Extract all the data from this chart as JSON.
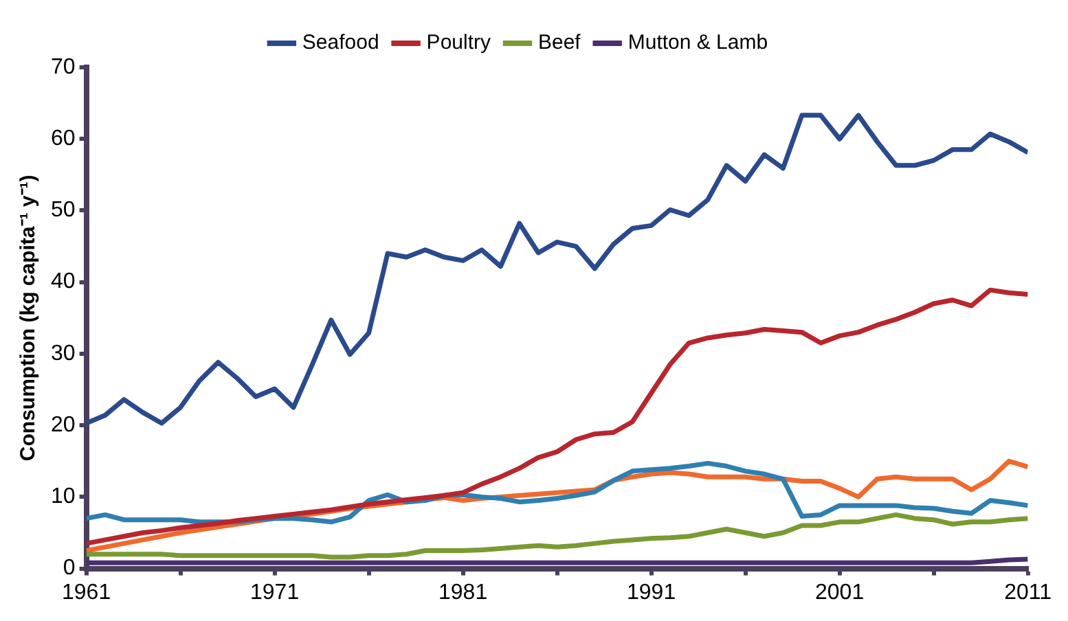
{
  "chart_data": {
    "type": "line",
    "ylabel": "Consumption (kg capita⁻¹ y⁻¹)",
    "x": [
      1961,
      1962,
      1963,
      1964,
      1965,
      1966,
      1967,
      1968,
      1969,
      1970,
      1971,
      1972,
      1973,
      1974,
      1975,
      1976,
      1977,
      1978,
      1979,
      1980,
      1981,
      1982,
      1983,
      1984,
      1985,
      1986,
      1987,
      1988,
      1989,
      1990,
      1991,
      1992,
      1993,
      1994,
      1995,
      1996,
      1997,
      1998,
      1999,
      2000,
      2001,
      2002,
      2003,
      2004,
      2005,
      2006,
      2007,
      2008,
      2009,
      2010,
      2011
    ],
    "xlim": [
      1961,
      2011
    ],
    "xticks": [
      1961,
      {
        "value": 1966,
        "label": null
      },
      1971,
      {
        "value": 1976,
        "label": null
      },
      1981,
      {
        "value": 1986,
        "label": null
      },
      1991,
      {
        "value": 1996,
        "label": null
      },
      2001,
      {
        "value": 2006,
        "label": null
      },
      2011
    ],
    "ylim": [
      0,
      70
    ],
    "yticks": [
      0,
      10,
      20,
      30,
      40,
      50,
      60,
      70
    ],
    "legend": "top",
    "marker": "none",
    "line_style": "solid",
    "series": [
      {
        "name": "Seafood",
        "color": "#2a4a8c",
        "values": [
          20.3,
          21.4,
          23.6,
          21.8,
          20.3,
          22.5,
          26.2,
          28.8,
          26.6,
          24,
          25.1,
          22.5,
          28.5,
          34.7,
          29.9,
          32.9,
          44,
          43.5,
          44.5,
          43.5,
          43,
          44.5,
          42.2,
          48.2,
          44.1,
          45.6,
          45,
          41.9,
          45.3,
          47.5,
          47.9,
          50.1,
          49.3,
          51.5,
          56.3,
          54.1,
          57.8,
          55.9,
          63.3,
          63.3,
          60,
          63.3,
          59.6,
          56.3,
          56.3,
          57,
          58.5,
          58.5,
          60.7,
          59.6,
          58.1
        ]
      },
      {
        "name": "Poultry",
        "color": "#b8262e",
        "values": [
          3.5,
          4,
          4.5,
          5,
          5.3,
          5.7,
          6,
          6.3,
          6.7,
          7,
          7.3,
          7.6,
          7.9,
          8.2,
          8.6,
          9,
          9.3,
          9.6,
          9.9,
          10.2,
          10.6,
          11.8,
          12.8,
          14,
          15.5,
          16.3,
          18,
          18.8,
          19,
          20.5,
          24.5,
          28.5,
          31.5,
          32.2,
          32.6,
          32.9,
          33.4,
          33.2,
          33,
          31.5,
          32.5,
          33,
          34,
          34.8,
          35.8,
          37,
          37.5,
          36.7,
          38.9,
          38.5,
          38.3
        ]
      },
      {
        "name": "Beef",
        "color": "#7a9a32",
        "values": [
          2,
          2,
          2,
          2,
          2,
          1.8,
          1.8,
          1.8,
          1.8,
          1.8,
          1.8,
          1.8,
          1.8,
          1.6,
          1.6,
          1.8,
          1.8,
          2,
          2.5,
          2.5,
          2.5,
          2.6,
          2.8,
          3,
          3.2,
          3,
          3.2,
          3.5,
          3.8,
          4,
          4.2,
          4.3,
          4.5,
          5,
          5.5,
          5,
          4.5,
          5,
          6,
          6,
          6.5,
          6.5,
          7,
          7.5,
          7,
          6.8,
          6.2,
          6.5,
          6.5,
          6.8,
          7
        ]
      },
      {
        "name": "Mutton & Lamb",
        "color": "#4a2f6e",
        "values": [
          0.8,
          0.8,
          0.8,
          0.8,
          0.8,
          0.8,
          0.8,
          0.8,
          0.8,
          0.8,
          0.8,
          0.8,
          0.8,
          0.8,
          0.8,
          0.8,
          0.8,
          0.8,
          0.8,
          0.8,
          0.8,
          0.8,
          0.8,
          0.8,
          0.8,
          0.8,
          0.8,
          0.8,
          0.8,
          0.8,
          0.8,
          0.8,
          0.8,
          0.8,
          0.8,
          0.8,
          0.8,
          0.8,
          0.8,
          0.8,
          0.8,
          0.8,
          0.8,
          0.8,
          0.8,
          0.8,
          0.8,
          0.8,
          1,
          1.2,
          1.3
        ]
      },
      {
        "color": "#2f7fb0",
        "values": [
          7,
          7.5,
          6.8,
          6.8,
          6.8,
          6.8,
          6.5,
          6.5,
          6.5,
          6.8,
          7,
          7,
          6.8,
          6.5,
          7.2,
          9.5,
          10.3,
          9.3,
          9.5,
          10.2,
          10.3,
          10,
          9.8,
          9.3,
          9.5,
          9.8,
          10.2,
          10.7,
          12.3,
          13.6,
          13.8,
          14,
          14.3,
          14.7,
          14.3,
          13.6,
          13.2,
          12.5,
          7.3,
          7.5,
          8.8,
          8.8,
          8.8,
          8.8,
          8.5,
          8.4,
          8,
          7.7,
          9.5,
          9.2,
          8.8
        ]
      },
      {
        "color": "#ef6a2e",
        "values": [
          2.5,
          3,
          3.5,
          4,
          4.5,
          5,
          5.4,
          5.8,
          6.2,
          6.6,
          7,
          7.3,
          7.6,
          8,
          8.4,
          8.7,
          9,
          9.3,
          9.6,
          9.9,
          9.5,
          9.8,
          10,
          10.2,
          10.4,
          10.6,
          10.8,
          11,
          12.3,
          12.8,
          13.2,
          13.4,
          13.2,
          12.8,
          12.8,
          12.8,
          12.5,
          12.5,
          12.2,
          12.2,
          11.2,
          10,
          12.5,
          12.8,
          12.5,
          12.5,
          12.5,
          11,
          12.5,
          15,
          14.2
        ]
      }
    ]
  }
}
